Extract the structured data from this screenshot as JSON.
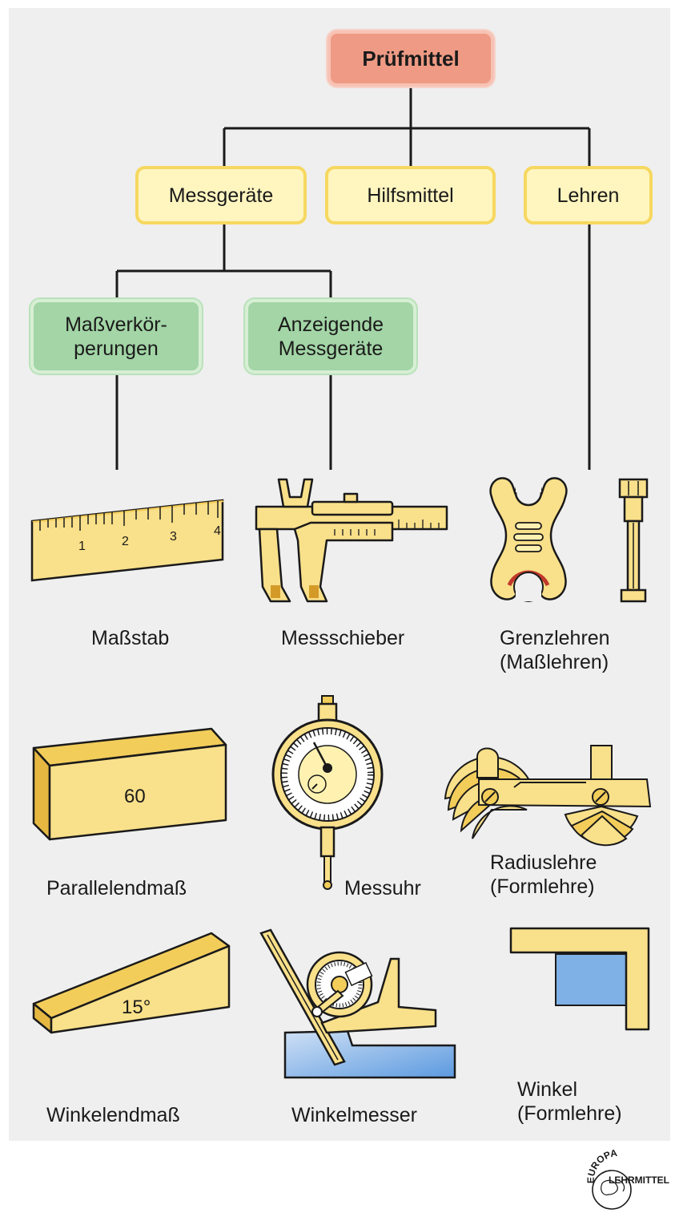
{
  "tree": {
    "root": "Prüfmittel",
    "level1": [
      "Messgeräte",
      "Hilfsmittel",
      "Lehren"
    ],
    "level2": [
      "Maßverkör-\nperungen",
      "Anzeigende\nMessgeräte"
    ]
  },
  "items": {
    "massstab": "Maßstab",
    "messschieber": "Messschieber",
    "grenzlehren": "Grenzlehren\n(Maßlehren)",
    "parallelendmass": "Parallelendmaß",
    "messuhr": "Messuhr",
    "radiuslehre": "Radiuslehre\n(Formlehre)",
    "winkelendmass": "Winkelendmaß",
    "winkelmesser": "Winkelmesser",
    "winkel": "Winkel\n(Formlehre)"
  },
  "illustration_text": {
    "ruler_ticks": [
      "1",
      "2",
      "3",
      "4"
    ],
    "gauge_block_value": "60",
    "angle_block_value": "15°"
  },
  "logo": {
    "top": "EUROPA",
    "bottom": "LEHRMITTEL"
  },
  "colors": {
    "root_fill": "#ee9a84",
    "level1_fill": "#fff5bf",
    "level2_fill": "#a3d5a6",
    "tool_fill": "#f9e08a",
    "accent_blue": "#7fb0e6"
  }
}
